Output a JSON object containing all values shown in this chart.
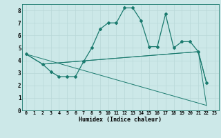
{
  "title": "",
  "xlabel": "Humidex (Indice chaleur)",
  "bg_color": "#cce8e8",
  "line_color": "#1a7a6e",
  "grid_color": "#b8d8d8",
  "xlim": [
    -0.5,
    23.5
  ],
  "ylim": [
    0,
    8.5
  ],
  "xticks": [
    0,
    1,
    2,
    3,
    4,
    5,
    6,
    7,
    8,
    9,
    10,
    11,
    12,
    13,
    14,
    15,
    16,
    17,
    18,
    19,
    20,
    21,
    22,
    23
  ],
  "yticks": [
    0,
    1,
    2,
    3,
    4,
    5,
    6,
    7,
    8
  ],
  "series": [
    {
      "x": [
        0,
        2,
        3,
        4,
        5,
        6,
        7,
        8,
        9,
        10,
        11,
        12,
        13,
        14,
        15,
        16,
        17,
        18,
        19,
        20,
        21,
        22
      ],
      "y": [
        4.5,
        3.7,
        3.1,
        2.7,
        2.7,
        2.7,
        3.9,
        5.0,
        6.5,
        7.0,
        7.0,
        8.2,
        8.2,
        7.2,
        5.1,
        5.1,
        7.7,
        5.0,
        5.5,
        5.5,
        4.7,
        2.2
      ],
      "marker": "D",
      "markersize": 2.0,
      "linewidth": 0.9
    },
    {
      "x": [
        0,
        2,
        21,
        22
      ],
      "y": [
        4.5,
        3.7,
        4.7,
        2.2
      ],
      "marker": null,
      "linewidth": 0.7
    },
    {
      "x": [
        0,
        22
      ],
      "y": [
        4.5,
        0.4
      ],
      "marker": null,
      "linewidth": 0.7
    },
    {
      "x": [
        2,
        21,
        22
      ],
      "y": [
        3.7,
        4.7,
        0.4
      ],
      "marker": null,
      "linewidth": 0.7
    }
  ]
}
